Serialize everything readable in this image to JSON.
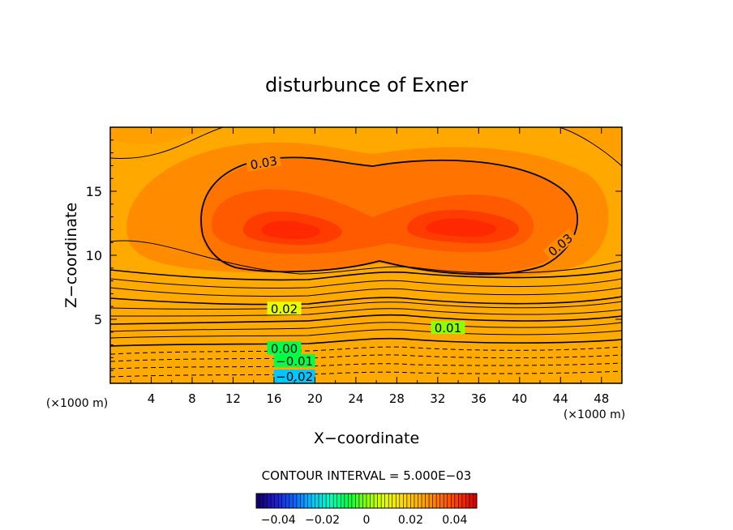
{
  "chart_data": {
    "type": "heatmap",
    "title": "disturbunce of Exner",
    "xlabel": "X−coordinate",
    "ylabel": "Z−coordinate",
    "x_unit": "(×1000 m)",
    "x_unit_right": "(×1000 m)",
    "xlim": [
      0,
      50
    ],
    "ylim": [
      0,
      20
    ],
    "x_ticks": [
      4,
      8,
      12,
      16,
      20,
      24,
      28,
      32,
      36,
      40,
      44,
      48
    ],
    "y_ticks": [
      5,
      10,
      15
    ],
    "contour_interval_text": "CONTOUR INTERVAL = 5.000E−03",
    "contour_interval": 0.005,
    "value_range": [
      -0.05,
      0.05
    ],
    "contour_labels": [
      {
        "text": "0.03",
        "x": 15,
        "y": 17.2
      },
      {
        "text": "0.03",
        "x": 44,
        "y": 10.8
      },
      {
        "text": "0.02",
        "x": 17,
        "y": 5.8
      },
      {
        "text": "0.01",
        "x": 33,
        "y": 4.3
      },
      {
        "text": "0.00",
        "x": 17,
        "y": 2.7
      },
      {
        "text": "−0.01",
        "x": 18,
        "y": 1.7
      },
      {
        "text": "−0.02",
        "x": 18,
        "y": 0.5
      }
    ],
    "colorbar": {
      "tick_labels": [
        "−0.04",
        "−0.02",
        "0",
        "0.02",
        "0.04"
      ],
      "tick_values": [
        -0.04,
        -0.02,
        0,
        0.02,
        0.04
      ],
      "colors": [
        "#14006e",
        "#1e1ed2",
        "#0a64ff",
        "#00c8ff",
        "#00ffbe",
        "#00ff46",
        "#8cff00",
        "#e6ff00",
        "#ffdc00",
        "#ffaa00",
        "#ff7300",
        "#ff3c00",
        "#dc0000"
      ]
    },
    "grid": false
  }
}
